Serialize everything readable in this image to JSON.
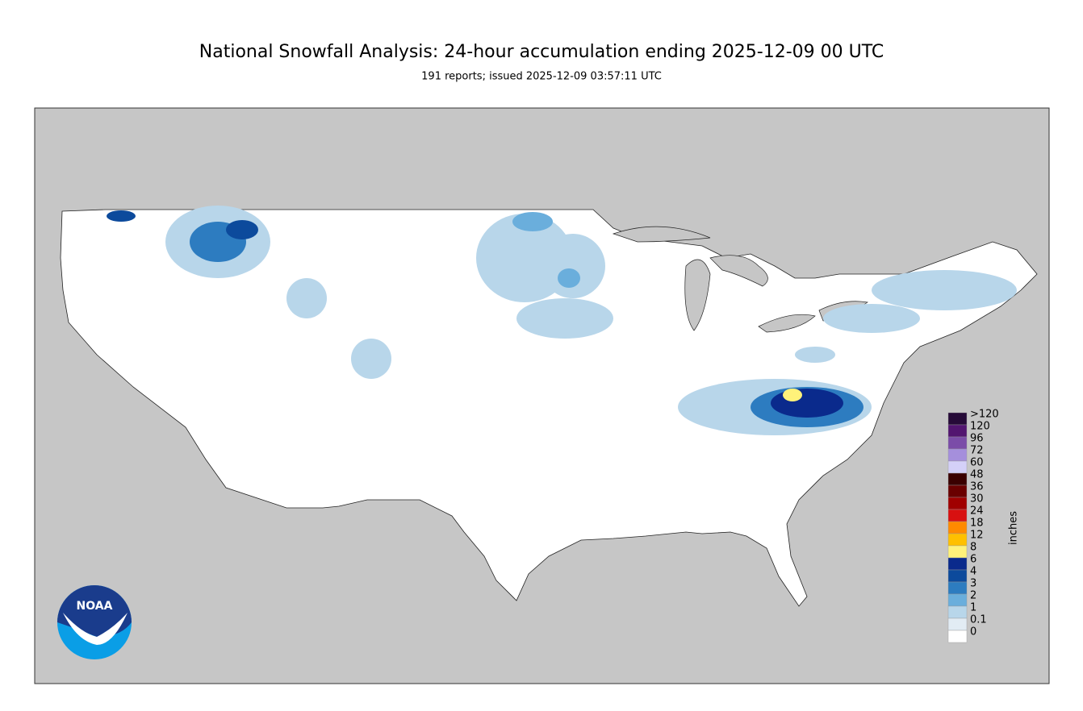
{
  "header": {
    "title": "National Snowfall Analysis: 24-hour accumulation ending 2025-12-09 00 UTC",
    "subtitle": "191 reports; issued 2025-12-09 03:57:11 UTC"
  },
  "legend": {
    "labels": [
      ">120",
      "120",
      "96",
      "72",
      "60",
      "48",
      "36",
      "30",
      "24",
      "18",
      "12",
      "8",
      "6",
      "4",
      "3",
      "2",
      "1",
      "0.1",
      "0"
    ],
    "colors": [
      "#260a38",
      "#521570",
      "#7b4ca8",
      "#a58fdc",
      "#d4d0f8",
      "#3a0000",
      "#6a0000",
      "#a00000",
      "#d81010",
      "#ff8a00",
      "#ffc000",
      "#fff27a",
      "#0a2a8c",
      "#0c4a9c",
      "#2d7cc0",
      "#6aaedc",
      "#b8d6ea",
      "#e2ecf4",
      "#ffffff"
    ],
    "unit": "inches"
  },
  "logo": {
    "text": "NOAA"
  }
}
